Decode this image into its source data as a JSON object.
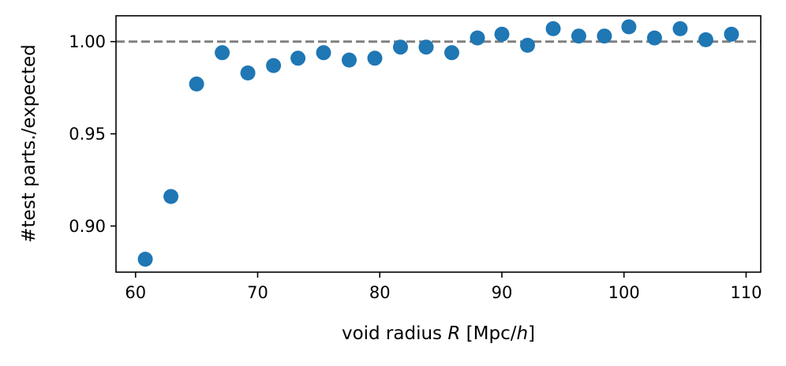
{
  "chart_data": {
    "type": "scatter",
    "title": "",
    "xlabel": {
      "prefix": "void radius ",
      "var": "R",
      "middle": " [Mpc/",
      "var2": "h",
      "suffix": "]"
    },
    "ylabel": "#test parts./expected",
    "xlim": [
      58.4,
      111.2
    ],
    "ylim": [
      0.875,
      1.014
    ],
    "x_ticks": [
      60,
      70,
      80,
      90,
      100,
      110
    ],
    "x_tick_labels": [
      "60",
      "70",
      "80",
      "90",
      "100",
      "110"
    ],
    "y_ticks": [
      0.9,
      0.95,
      1.0
    ],
    "y_tick_labels": [
      "0.90",
      "0.95",
      "1.00"
    ],
    "grid": false,
    "reference_line": {
      "y": 1.0,
      "style": "dashed",
      "color": "#808080"
    },
    "series": [
      {
        "color": "#1f77b4",
        "points": [
          {
            "x": 60.8,
            "y": 0.882
          },
          {
            "x": 62.9,
            "y": 0.916
          },
          {
            "x": 65.0,
            "y": 0.977
          },
          {
            "x": 67.1,
            "y": 0.994
          },
          {
            "x": 69.2,
            "y": 0.983
          },
          {
            "x": 71.3,
            "y": 0.987
          },
          {
            "x": 73.3,
            "y": 0.991
          },
          {
            "x": 75.4,
            "y": 0.994
          },
          {
            "x": 77.5,
            "y": 0.99
          },
          {
            "x": 79.6,
            "y": 0.991
          },
          {
            "x": 81.7,
            "y": 0.997
          },
          {
            "x": 83.8,
            "y": 0.997
          },
          {
            "x": 85.9,
            "y": 0.994
          },
          {
            "x": 88.0,
            "y": 1.002
          },
          {
            "x": 90.0,
            "y": 1.004
          },
          {
            "x": 92.1,
            "y": 0.998
          },
          {
            "x": 94.2,
            "y": 1.007
          },
          {
            "x": 96.3,
            "y": 1.003
          },
          {
            "x": 98.4,
            "y": 1.003
          },
          {
            "x": 100.4,
            "y": 1.008
          },
          {
            "x": 102.5,
            "y": 1.002
          },
          {
            "x": 104.6,
            "y": 1.007
          },
          {
            "x": 106.7,
            "y": 1.001
          },
          {
            "x": 108.8,
            "y": 1.004
          }
        ]
      }
    ]
  }
}
